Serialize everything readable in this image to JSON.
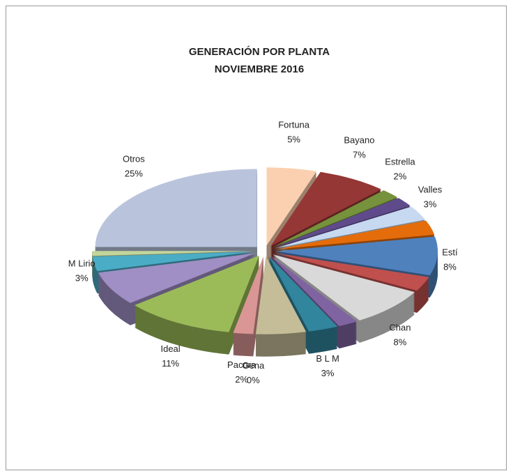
{
  "chart_data": {
    "type": "pie3d",
    "title": "GENERACIÓN  POR  PLANTA",
    "subtitle": "NOVIEMBRE   2016",
    "categories": [
      "Fortuna",
      "Bayano",
      "Estrella",
      null,
      "Valles",
      null,
      "Estí",
      null,
      "Chan",
      null,
      "B L M",
      null,
      "Gena",
      "Pacora",
      "Ideal",
      null,
      "M Lirio",
      null,
      "Otros"
    ],
    "values": [
      5,
      7,
      2,
      2,
      3,
      3,
      8,
      3,
      8,
      2,
      3,
      5,
      0,
      2,
      11,
      7,
      3,
      1,
      25
    ],
    "value_labels": [
      "5%",
      "7%",
      "2%",
      null,
      "3%",
      null,
      "8%",
      null,
      "8%",
      null,
      "3%",
      null,
      "0%",
      "2%",
      "11%",
      null,
      "3%",
      null,
      "25%"
    ],
    "colors": [
      "#FAD0B0",
      "#953735",
      "#76923C",
      "#5F4B8B",
      "#C6D9F1",
      "#E46C0A",
      "#4F81BD",
      "#C0504D",
      "#D9D9D9",
      "#8064A2",
      "#31859C",
      "#C4BD97",
      "#4F81BD",
      "#D99694",
      "#9BBB59",
      "#9F8FC4",
      "#4BACC6",
      "#C3D69B",
      "#B9C4DC"
    ]
  }
}
